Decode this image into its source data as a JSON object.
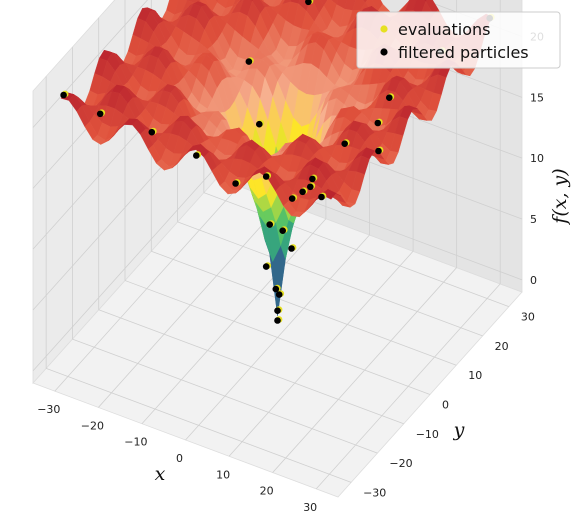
{
  "chart_data": {
    "type": "scatter",
    "projection": "3d-surface",
    "xlabel": "x",
    "ylabel": "y",
    "zlabel": "f(x, y)",
    "x_ticks": [
      "−30",
      "−20",
      "−10",
      "0",
      "10",
      "20",
      "30"
    ],
    "y_ticks": [
      "−30",
      "−20",
      "−10",
      "0",
      "10",
      "20",
      "30"
    ],
    "z_ticks": [
      "0",
      "5",
      "10",
      "15",
      "20"
    ],
    "xlim": [
      -35,
      35
    ],
    "ylim": [
      -35,
      35
    ],
    "zlim": [
      -1,
      23
    ],
    "grid": true,
    "legend_position": "top-right",
    "series": [
      {
        "name": "evaluations",
        "color": "#e6e022",
        "marker": "circle"
      },
      {
        "name": "filtered particles",
        "color": "#000000",
        "marker": "circle"
      }
    ],
    "surface_colormap": [
      "#440154",
      "#3b528b",
      "#21918c",
      "#5ec962",
      "#fde725",
      "#f7b08f",
      "#e0523c",
      "#b0172a"
    ],
    "sample_points": [
      [
        0,
        0,
        0.4
      ],
      [
        0,
        0,
        1.2
      ],
      [
        -1,
        1,
        2.6
      ],
      [
        1,
        -1,
        2.9
      ],
      [
        -2,
        -1,
        4.8
      ],
      [
        2,
        2,
        6.1
      ],
      [
        -3,
        2,
        7.4
      ],
      [
        3,
        -3,
        8.9
      ],
      [
        -5,
        4,
        10.6
      ],
      [
        5,
        5,
        11.5
      ],
      [
        -6,
        -6,
        12.3
      ],
      [
        7,
        -6,
        12.8
      ],
      [
        -9,
        8,
        13.4
      ],
      [
        10,
        9,
        14.1
      ],
      [
        -12,
        -11,
        15.0
      ],
      [
        13,
        -12,
        15.6
      ],
      [
        -15,
        14,
        16.3
      ],
      [
        16,
        16,
        17.0
      ],
      [
        -18,
        -18,
        17.8
      ],
      [
        19,
        -19,
        18.5
      ],
      [
        -21,
        22,
        19.2
      ],
      [
        23,
        24,
        19.8
      ],
      [
        -25,
        -26,
        20.3
      ],
      [
        27,
        -28,
        20.9
      ],
      [
        -29,
        30,
        21.4
      ],
      [
        30,
        31,
        21.8
      ],
      [
        -31,
        -30,
        22.0
      ],
      [
        20,
        5,
        18.1
      ],
      [
        -8,
        25,
        19.5
      ],
      [
        28,
        -8,
        20.0
      ]
    ]
  }
}
